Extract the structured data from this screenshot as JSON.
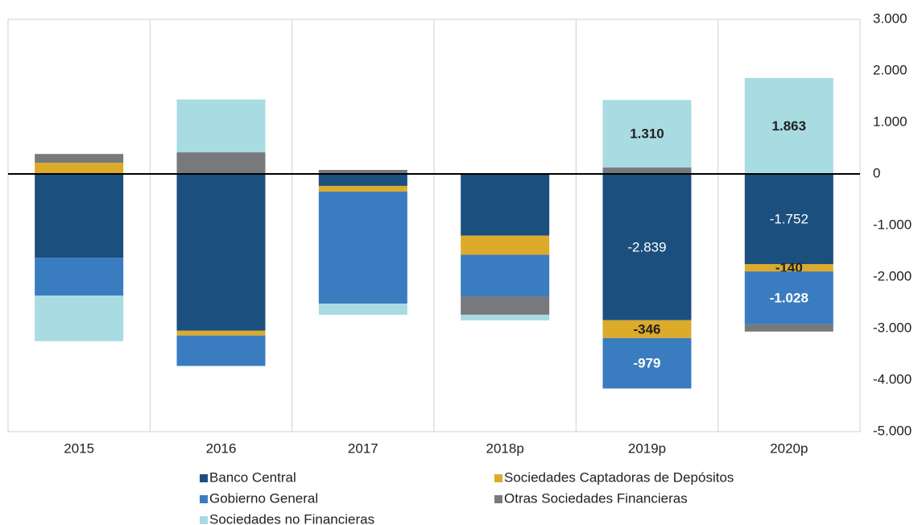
{
  "chart_data": {
    "type": "stacked_bar",
    "categories": [
      "2015",
      "2016",
      "2017",
      "2018p",
      "2019p",
      "2020p"
    ],
    "series": [
      {
        "name": "Banco Central",
        "color": "#1b4f7e",
        "values": [
          -1630,
          -3043,
          -233,
          -1196,
          -2839,
          -1752
        ],
        "value_labels": [
          null,
          null,
          null,
          null,
          "-2.839",
          "-1.752"
        ]
      },
      {
        "name": "Sociedades Captadoras de Depósitos",
        "color": "#dcab2a",
        "values": [
          217,
          -93,
          -109,
          -373,
          -346,
          -140
        ],
        "value_labels": [
          null,
          null,
          null,
          null,
          "-346",
          "-140"
        ]
      },
      {
        "name": "Gobierno General",
        "color": "#3a7cc0",
        "values": [
          -730,
          -590,
          -2174,
          -807,
          -979,
          -1028
        ],
        "value_labels": [
          null,
          null,
          null,
          null,
          "-979",
          "-1.028"
        ]
      },
      {
        "name": "Otras Sociedades Financieras",
        "color": "#77797c",
        "values": [
          170,
          420,
          78,
          -357,
          124,
          -139
        ],
        "value_labels": [
          null,
          null,
          null,
          null,
          null,
          null
        ]
      },
      {
        "name": "Sociedades no Financieras",
        "color": "#a9dbe3",
        "values": [
          -885,
          1025,
          -217,
          -109,
          1310,
          1863
        ],
        "value_labels": [
          null,
          null,
          null,
          null,
          "1.310",
          "1.863"
        ]
      }
    ],
    "ylim": [
      -5000,
      3000
    ],
    "yticks": [
      {
        "value": -5000,
        "label": "-5.000"
      },
      {
        "value": -4000,
        "label": "-4.000"
      },
      {
        "value": -3000,
        "label": "-3.000"
      },
      {
        "value": -2000,
        "label": "-2.000"
      },
      {
        "value": -1000,
        "label": "-1.000"
      },
      0,
      {
        "value": 1000,
        "label": "1.000"
      },
      {
        "value": 2000,
        "label": "2.000"
      },
      {
        "value": 3000,
        "label": "3.000"
      }
    ],
    "legend": "bottom"
  }
}
